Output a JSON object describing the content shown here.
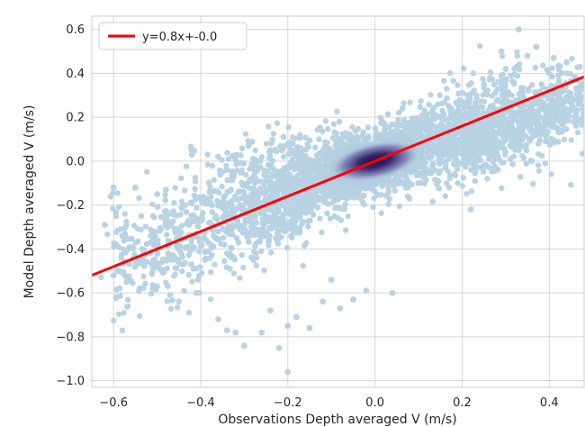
{
  "chart_data": {
    "type": "scatter",
    "title": "",
    "xlabel": "Observations Depth averaged V (m/s)",
    "ylabel": "Model Depth averaged V (m/s)",
    "xlim": [
      -0.65,
      0.48
    ],
    "ylim": [
      -1.03,
      0.66
    ],
    "xticks": [
      -0.6,
      -0.4,
      -0.2,
      0.0,
      0.2,
      0.4
    ],
    "xtick_labels": [
      "−0.6",
      "−0.4",
      "−0.2",
      "0.0",
      "0.2",
      "0.4"
    ],
    "yticks": [
      0.6,
      0.4,
      0.2,
      0.0,
      -0.2,
      -0.4,
      -0.6,
      -0.8,
      -1.0
    ],
    "ytick_labels": [
      "0.6",
      "0.4",
      "0.2",
      "0.0",
      "−0.2",
      "−0.4",
      "−0.6",
      "−0.8",
      "−1.0"
    ],
    "grid": true,
    "legend": {
      "placement": "top-left",
      "entries": [
        {
          "label": "y=0.8x+-0.0",
          "color": "#ff0000"
        }
      ]
    },
    "fit_line": {
      "slope": 0.8,
      "intercept": 0.0,
      "x_range": [
        -0.65,
        0.48
      ],
      "color": "#ff0000"
    },
    "density": {
      "center": [
        0.0,
        0.0
      ],
      "colormap": [
        "#c9dcea",
        "#9fb8d6",
        "#5d5d99",
        "#2a1650"
      ],
      "point_color": "#b8d3e3"
    },
    "outlier_points": [
      [
        -0.62,
        -0.29
      ],
      [
        -0.58,
        -0.34
      ],
      [
        -0.6,
        -0.52
      ],
      [
        -0.57,
        -0.55
      ],
      [
        -0.54,
        -0.58
      ],
      [
        -0.5,
        -0.57
      ],
      [
        -0.47,
        -0.61
      ],
      [
        -0.45,
        -0.64
      ],
      [
        -0.5,
        -0.15
      ],
      [
        -0.48,
        -0.13
      ],
      [
        -0.55,
        -0.12
      ],
      [
        -0.45,
        -0.33
      ],
      [
        -0.41,
        -0.6
      ],
      [
        -0.36,
        -0.72
      ],
      [
        -0.34,
        -0.77
      ],
      [
        -0.32,
        -0.78
      ],
      [
        -0.3,
        -0.84
      ],
      [
        -0.26,
        -0.78
      ],
      [
        -0.22,
        -0.85
      ],
      [
        -0.2,
        -0.96
      ],
      [
        -0.18,
        -0.71
      ],
      [
        -0.15,
        -0.76
      ],
      [
        -0.12,
        -0.64
      ],
      [
        -0.08,
        -0.67
      ],
      [
        -0.05,
        -0.63
      ],
      [
        -0.1,
        -0.54
      ],
      [
        -0.02,
        -0.59
      ],
      [
        0.04,
        -0.6
      ],
      [
        -0.2,
        -0.75
      ],
      [
        -0.24,
        -0.68
      ],
      [
        0.25,
        0.35
      ],
      [
        0.3,
        0.42
      ],
      [
        0.33,
        0.6
      ],
      [
        0.35,
        0.48
      ],
      [
        0.41,
        0.47
      ],
      [
        0.44,
        0.45
      ],
      [
        0.47,
        0.43
      ],
      [
        0.46,
        0.37
      ],
      [
        0.37,
        0.52
      ],
      [
        0.29,
        0.5
      ],
      [
        0.33,
        0.05
      ],
      [
        0.36,
        0.0
      ],
      [
        0.22,
        -0.22
      ],
      [
        -0.38,
        -0.14
      ],
      [
        -0.34,
        -0.04
      ],
      [
        -0.29,
        0.07
      ],
      [
        -0.24,
        0.05
      ],
      [
        -0.21,
        0.11
      ],
      [
        -0.42,
        0.03
      ],
      [
        -0.36,
        0.02
      ],
      [
        -0.6,
        -0.12
      ],
      [
        -0.44,
        -0.47
      ]
    ]
  }
}
